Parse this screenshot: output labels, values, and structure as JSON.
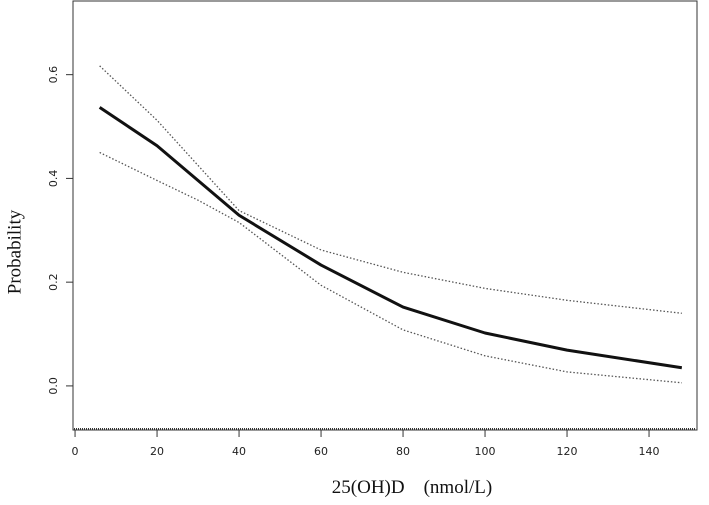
{
  "chart_data": {
    "type": "line",
    "x_label": "25(OH)D    (nmol/L)",
    "y_label": "Probability",
    "x": [
      6,
      20,
      30,
      40,
      60,
      80,
      100,
      120,
      148
    ],
    "series": [
      {
        "color": "#111111",
        "style": "solid",
        "values": [
          0.537,
          0.463,
          0.396,
          0.329,
          0.233,
          0.152,
          0.102,
          0.069,
          0.035
        ]
      },
      {
        "color": "#555555",
        "style": "dotted",
        "values": [
          0.617,
          0.512,
          0.425,
          0.338,
          0.262,
          0.219,
          0.188,
          0.165,
          0.14
        ]
      },
      {
        "color": "#555555",
        "style": "dotted",
        "values": [
          0.45,
          0.396,
          0.358,
          0.315,
          0.194,
          0.108,
          0.058,
          0.027,
          0.006
        ]
      }
    ],
    "xlim": [
      -0.5,
      151.7
    ],
    "ylim": [
      -0.085,
      0.742
    ],
    "xticks": [
      0,
      20,
      40,
      60,
      80,
      100,
      120,
      140
    ],
    "yticks": [
      {
        "value": 0,
        "label": "0.0"
      },
      0.2,
      0.4,
      0.6
    ]
  }
}
